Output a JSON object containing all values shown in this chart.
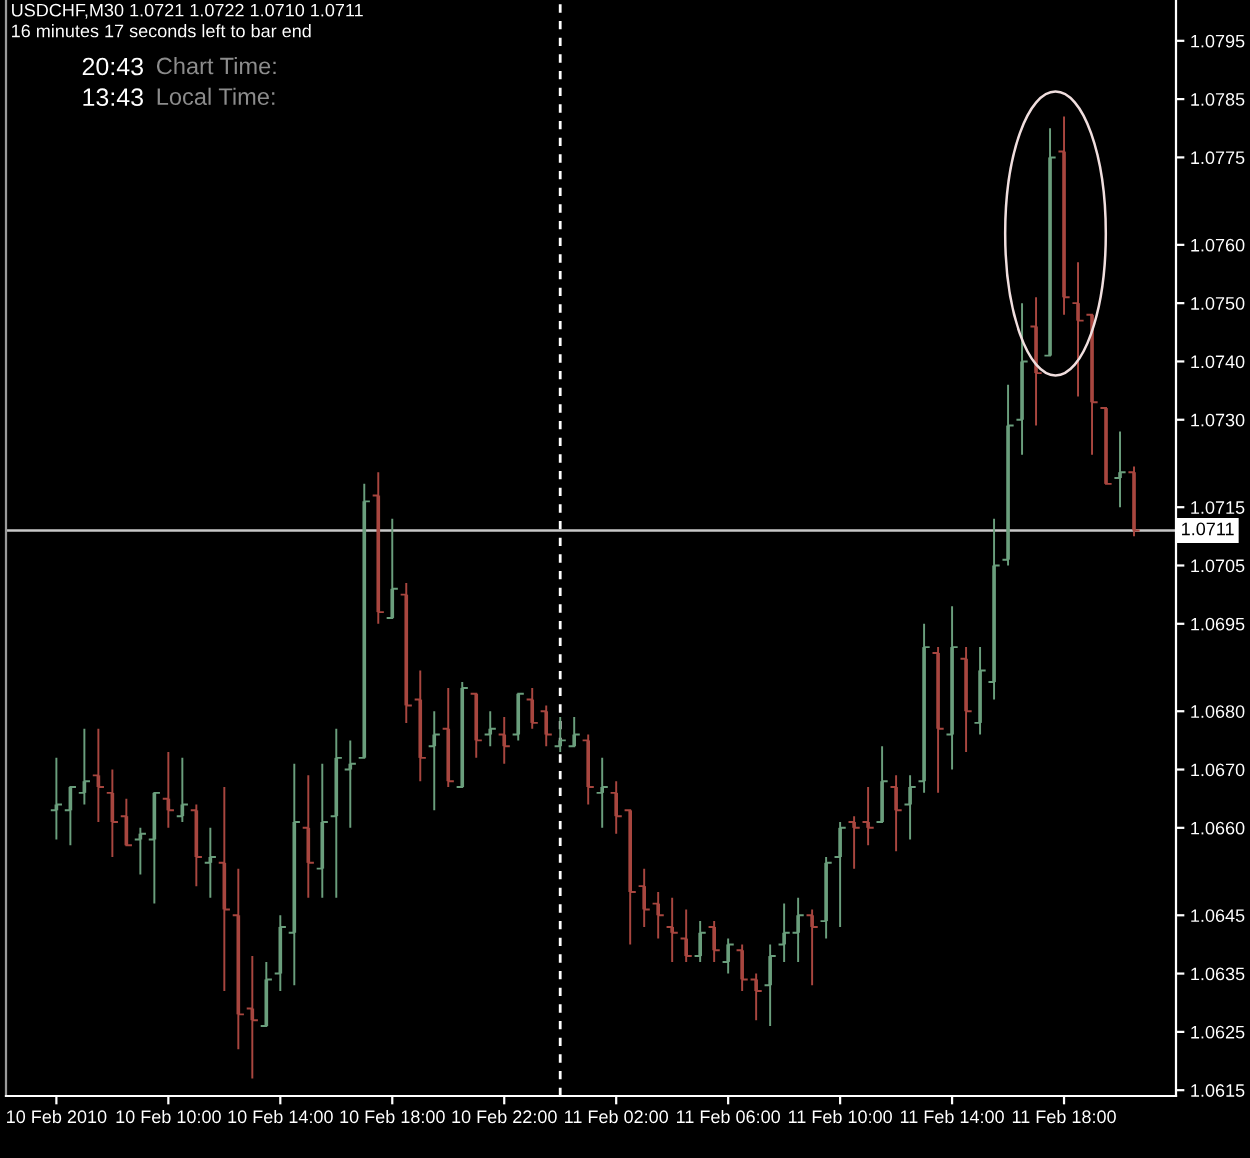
{
  "chart_data": {
    "type": "candlestick",
    "title": "USDCHF,M30 1.0721 1.0722 1.0710 1.0711",
    "subtitle": "16 minutes 17 seconds left to bar end",
    "annotations": [
      "20:43",
      "Chart Time:",
      "13:43",
      "Local Time:"
    ],
    "x": [
      "2010-02-10T06:00",
      "2010-02-10T06:30",
      "2010-02-10T07:00",
      "2010-02-10T07:30",
      "2010-02-10T08:00",
      "2010-02-10T08:30",
      "2010-02-10T09:00",
      "2010-02-10T09:30",
      "2010-02-10T10:00",
      "2010-02-10T10:30",
      "2010-02-10T11:00",
      "2010-02-10T11:30",
      "2010-02-10T12:00",
      "2010-02-10T12:30",
      "2010-02-10T13:00",
      "2010-02-10T13:30",
      "2010-02-10T14:00",
      "2010-02-10T14:30",
      "2010-02-10T15:00",
      "2010-02-10T15:30",
      "2010-02-10T16:00",
      "2010-02-10T16:30",
      "2010-02-10T17:00",
      "2010-02-10T17:30",
      "2010-02-10T18:00",
      "2010-02-10T18:30",
      "2010-02-10T19:00",
      "2010-02-10T19:30",
      "2010-02-10T20:00",
      "2010-02-10T20:30",
      "2010-02-10T21:00",
      "2010-02-10T21:30",
      "2010-02-10T22:00",
      "2010-02-10T22:30",
      "2010-02-10T23:00",
      "2010-02-10T23:30",
      "2010-02-11T00:00",
      "2010-02-11T00:30",
      "2010-02-11T01:00",
      "2010-02-11T01:30",
      "2010-02-11T02:00",
      "2010-02-11T02:30",
      "2010-02-11T03:00",
      "2010-02-11T03:30",
      "2010-02-11T04:00",
      "2010-02-11T04:30",
      "2010-02-11T05:00",
      "2010-02-11T05:30",
      "2010-02-11T06:00",
      "2010-02-11T06:30",
      "2010-02-11T07:00",
      "2010-02-11T07:30",
      "2010-02-11T08:00",
      "2010-02-11T08:30",
      "2010-02-11T09:00",
      "2010-02-11T09:30",
      "2010-02-11T10:00",
      "2010-02-11T10:30",
      "2010-02-11T11:00",
      "2010-02-11T11:30",
      "2010-02-11T12:00",
      "2010-02-11T12:30",
      "2010-02-11T13:00",
      "2010-02-11T13:30",
      "2010-02-11T14:00",
      "2010-02-11T14:30",
      "2010-02-11T15:00",
      "2010-02-11T15:30",
      "2010-02-11T16:00",
      "2010-02-11T16:30",
      "2010-02-11T17:00",
      "2010-02-11T17:30",
      "2010-02-11T18:00",
      "2010-02-11T18:30",
      "2010-02-11T19:00",
      "2010-02-11T19:30",
      "2010-02-11T20:00",
      "2010-02-11T20:30"
    ],
    "ohlc": [
      [
        1.0663,
        1.0672,
        1.0658,
        1.0664
      ],
      [
        1.0663,
        1.0667,
        1.0657,
        1.0667
      ],
      [
        1.0666,
        1.0677,
        1.0664,
        1.0668
      ],
      [
        1.0669,
        1.0677,
        1.0661,
        1.0667
      ],
      [
        1.0666,
        1.067,
        1.0655,
        1.0661
      ],
      [
        1.0662,
        1.0665,
        1.0657,
        1.0657
      ],
      [
        1.0658,
        1.066,
        1.0652,
        1.0659
      ],
      [
        1.0658,
        1.0666,
        1.0647,
        1.0666
      ],
      [
        1.0665,
        1.0673,
        1.066,
        1.0663
      ],
      [
        1.0662,
        1.0672,
        1.0661,
        1.0664
      ],
      [
        1.0663,
        1.0664,
        1.065,
        1.0655
      ],
      [
        1.0654,
        1.066,
        1.0648,
        1.0655
      ],
      [
        1.0654,
        1.0667,
        1.0632,
        1.0646
      ],
      [
        1.0645,
        1.0653,
        1.0622,
        1.0628
      ],
      [
        1.0629,
        1.0638,
        1.0617,
        1.0627
      ],
      [
        1.0626,
        1.0637,
        1.0626,
        1.0634
      ],
      [
        1.0635,
        1.0645,
        1.0632,
        1.0643
      ],
      [
        1.0642,
        1.0671,
        1.0633,
        1.0661
      ],
      [
        1.066,
        1.0669,
        1.0648,
        1.0654
      ],
      [
        1.0653,
        1.0671,
        1.0648,
        1.0661
      ],
      [
        1.0662,
        1.0677,
        1.0648,
        1.0672
      ],
      [
        1.067,
        1.0675,
        1.066,
        1.0671
      ],
      [
        1.0672,
        1.0719,
        1.0672,
        1.0716
      ],
      [
        1.0717,
        1.0721,
        1.0695,
        1.0697
      ],
      [
        1.0696,
        1.0713,
        1.0696,
        1.0701
      ],
      [
        1.07,
        1.0702,
        1.0678,
        1.0681
      ],
      [
        1.0682,
        1.0687,
        1.0668,
        1.0672
      ],
      [
        1.0674,
        1.068,
        1.0663,
        1.0676
      ],
      [
        1.0677,
        1.0684,
        1.0667,
        1.0668
      ],
      [
        1.0667,
        1.0685,
        1.0667,
        1.0684
      ],
      [
        1.0683,
        1.0683,
        1.0672,
        1.0675
      ],
      [
        1.0676,
        1.068,
        1.0674,
        1.0677
      ],
      [
        1.0676,
        1.0679,
        1.0671,
        1.0674
      ],
      [
        1.0676,
        1.0683,
        1.0675,
        1.0683
      ],
      [
        1.0682,
        1.0684,
        1.0677,
        1.0678
      ],
      [
        1.068,
        1.0681,
        1.0674,
        1.0676
      ],
      [
        1.0674,
        1.0679,
        1.0673,
        1.0675
      ],
      [
        1.0674,
        1.0679,
        1.0674,
        1.0676
      ],
      [
        1.0675,
        1.0676,
        1.0664,
        1.0667
      ],
      [
        1.0666,
        1.0672,
        1.066,
        1.0667
      ],
      [
        1.0666,
        1.0668,
        1.0659,
        1.0662
      ],
      [
        1.0663,
        1.0663,
        1.064,
        1.0649
      ],
      [
        1.065,
        1.0653,
        1.0643,
        1.0646
      ],
      [
        1.0647,
        1.0649,
        1.0641,
        1.0645
      ],
      [
        1.0643,
        1.0648,
        1.0637,
        1.0642
      ],
      [
        1.0641,
        1.0646,
        1.0637,
        1.0638
      ],
      [
        1.0638,
        1.0644,
        1.0637,
        1.0642
      ],
      [
        1.0643,
        1.0644,
        1.0637,
        1.0639
      ],
      [
        1.0637,
        1.0641,
        1.0635,
        1.064
      ],
      [
        1.0639,
        1.064,
        1.0632,
        1.0634
      ],
      [
        1.0634,
        1.0635,
        1.0627,
        1.0632
      ],
      [
        1.0633,
        1.064,
        1.0626,
        1.0638
      ],
      [
        1.064,
        1.0647,
        1.0637,
        1.0642
      ],
      [
        1.0642,
        1.0648,
        1.0637,
        1.0645
      ],
      [
        1.0645,
        1.0646,
        1.0633,
        1.0643
      ],
      [
        1.0644,
        1.0655,
        1.0641,
        1.0654
      ],
      [
        1.0655,
        1.0661,
        1.0643,
        1.066
      ],
      [
        1.0661,
        1.0662,
        1.0653,
        1.066
      ],
      [
        1.0661,
        1.0667,
        1.0657,
        1.066
      ],
      [
        1.0661,
        1.0674,
        1.0661,
        1.0668
      ],
      [
        1.0667,
        1.0669,
        1.0656,
        1.0663
      ],
      [
        1.0664,
        1.0669,
        1.0658,
        1.0667
      ],
      [
        1.0668,
        1.0695,
        1.0666,
        1.0691
      ],
      [
        1.069,
        1.0691,
        1.0666,
        1.0677
      ],
      [
        1.0676,
        1.0698,
        1.067,
        1.0691
      ],
      [
        1.0689,
        1.0691,
        1.0673,
        1.068
      ],
      [
        1.0678,
        1.0691,
        1.0676,
        1.0687
      ],
      [
        1.0685,
        1.0713,
        1.0682,
        1.0705
      ],
      [
        1.0706,
        1.0736,
        1.0705,
        1.0729
      ],
      [
        1.073,
        1.075,
        1.0724,
        1.074
      ],
      [
        1.0746,
        1.0751,
        1.0729,
        1.0738
      ],
      [
        1.0741,
        1.078,
        1.0741,
        1.0775
      ],
      [
        1.0776,
        1.0782,
        1.0748,
        1.0751
      ],
      [
        1.075,
        1.0757,
        1.0734,
        1.0747
      ],
      [
        1.0748,
        1.0748,
        1.0724,
        1.0733
      ],
      [
        1.0732,
        1.0732,
        1.0719,
        1.0719
      ],
      [
        1.072,
        1.0728,
        1.0715,
        1.0721
      ],
      [
        1.0721,
        1.0722,
        1.071,
        1.0711
      ]
    ],
    "colors": [
      "#6a9e7c",
      "#6a9e7c",
      "#6a9e7c",
      "#a8463f",
      "#a8463f",
      "#a8463f",
      "#6a9e7c",
      "#6a9e7c",
      "#a8463f",
      "#6a9e7c",
      "#a8463f",
      "#6a9e7c",
      "#a8463f",
      "#a8463f",
      "#a8463f",
      "#6a9e7c",
      "#6a9e7c",
      "#6a9e7c",
      "#a8463f",
      "#6a9e7c",
      "#6a9e7c",
      "#6a9e7c",
      "#6a9e7c",
      "#a8463f",
      "#6a9e7c",
      "#a8463f",
      "#a8463f",
      "#6a9e7c",
      "#a8463f",
      "#6a9e7c",
      "#a8463f",
      "#6a9e7c",
      "#a8463f",
      "#6a9e7c",
      "#a8463f",
      "#a8463f",
      "#6a9e7c",
      "#6a9e7c",
      "#a8463f",
      "#6a9e7c",
      "#a8463f",
      "#a8463f",
      "#a8463f",
      "#a8463f",
      "#a8463f",
      "#a8463f",
      "#6a9e7c",
      "#a8463f",
      "#6a9e7c",
      "#a8463f",
      "#a8463f",
      "#6a9e7c",
      "#6a9e7c",
      "#6a9e7c",
      "#a8463f",
      "#6a9e7c",
      "#6a9e7c",
      "#a8463f",
      "#a8463f",
      "#6a9e7c",
      "#a8463f",
      "#6a9e7c",
      "#6a9e7c",
      "#a8463f",
      "#6a9e7c",
      "#a8463f",
      "#6a9e7c",
      "#6a9e7c",
      "#6a9e7c",
      "#6a9e7c",
      "#a8463f",
      "#6a9e7c",
      "#a8463f",
      "#a8463f",
      "#a8463f",
      "#a8463f",
      "#6a9e7c",
      "#a8463f"
    ],
    "xlim": [
      "2010-02-10T04:12",
      "2010-02-11T22:00"
    ],
    "xticks": [
      {
        "value": "2010-02-10T06:00",
        "label": "10 Feb 2010"
      },
      {
        "value": "2010-02-10T10:00",
        "label": "10 Feb 10:00"
      },
      {
        "value": "2010-02-10T14:00",
        "label": "10 Feb 14:00"
      },
      {
        "value": "2010-02-10T18:00",
        "label": "10 Feb 18:00"
      },
      {
        "value": "2010-02-10T22:00",
        "label": "10 Feb 22:00"
      },
      {
        "value": "2010-02-11T02:00",
        "label": "11 Feb 02:00"
      },
      {
        "value": "2010-02-11T06:00",
        "label": "11 Feb 06:00"
      },
      {
        "value": "2010-02-11T10:00",
        "label": "11 Feb 10:00"
      },
      {
        "value": "2010-02-11T14:00",
        "label": "11 Feb 14:00"
      },
      {
        "value": "2010-02-11T18:00",
        "label": "11 Feb 18:00"
      }
    ],
    "ylim": [
      1.0614,
      1.0802
    ],
    "yticks": [
      1.0795,
      1.0785,
      1.0775,
      {
        "value": 1.076,
        "label": "1.0760"
      },
      {
        "value": 1.075,
        "label": "1.0750"
      },
      {
        "value": 1.074,
        "label": "1.0740"
      },
      {
        "value": 1.073,
        "label": "1.0730"
      },
      1.0715,
      1.0705,
      1.0695,
      {
        "value": 1.068,
        "label": "1.0680"
      },
      {
        "value": 1.067,
        "label": "1.0670"
      },
      {
        "value": 1.066,
        "label": "1.0660"
      },
      1.0645,
      1.0635,
      1.0625,
      1.0615
    ],
    "ref_lines": [
      {
        "axis": "x",
        "value": "2010-02-11T00:00",
        "color": "#ffffff",
        "line_style": "dashed"
      },
      {
        "axis": "y",
        "value": 1.0711,
        "label": "1.0711",
        "color": "#c8c8c8",
        "line_style": "solid"
      }
    ]
  }
}
